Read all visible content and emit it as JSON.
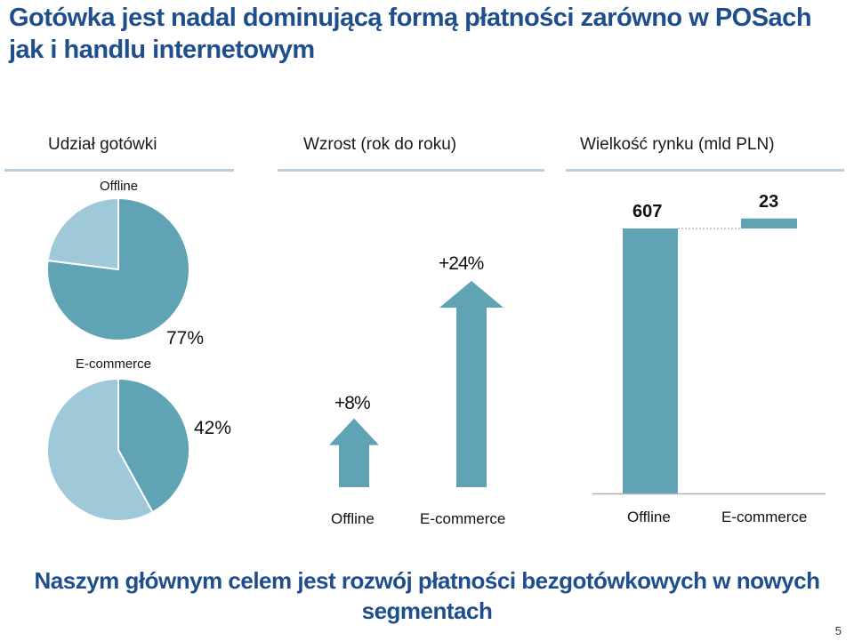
{
  "title": "Gotówka jest nadal dominującą formą płatności zarówno w POSach jak i handlu internetowym",
  "headers": {
    "cash_share": "Udział gotówki",
    "growth": "Wzrost (rok do roku)",
    "market_size": "Wielkość rynku (mld PLN)"
  },
  "colors": {
    "accent": "#5fa3b5",
    "light": "#9fc9d8",
    "title": "#1f4e8c"
  },
  "chart_data": [
    {
      "type": "pie",
      "title": "Offline",
      "slices": [
        {
          "label": "77%",
          "value": 77,
          "color": "#5fa3b5"
        },
        {
          "label": "",
          "value": 23,
          "color": "#9fc9d8"
        }
      ]
    },
    {
      "type": "pie",
      "title": "E-commerce",
      "slices": [
        {
          "label": "42%",
          "value": 42,
          "color": "#5fa3b5"
        },
        {
          "label": "",
          "value": 58,
          "color": "#9fc9d8"
        }
      ]
    },
    {
      "type": "bar",
      "categories": [
        "Offline",
        "E-commerce"
      ],
      "values": [
        8,
        24
      ],
      "labels": [
        "+8%",
        "+24%"
      ]
    },
    {
      "type": "bar",
      "categories": [
        "Offline",
        "E-commerce"
      ],
      "values": [
        607,
        23
      ],
      "labels": [
        "607",
        "23"
      ]
    }
  ],
  "footer": "Naszym głównym celem jest rozwój płatności bezgotówkowych w nowych segmentach",
  "page_number": "5"
}
